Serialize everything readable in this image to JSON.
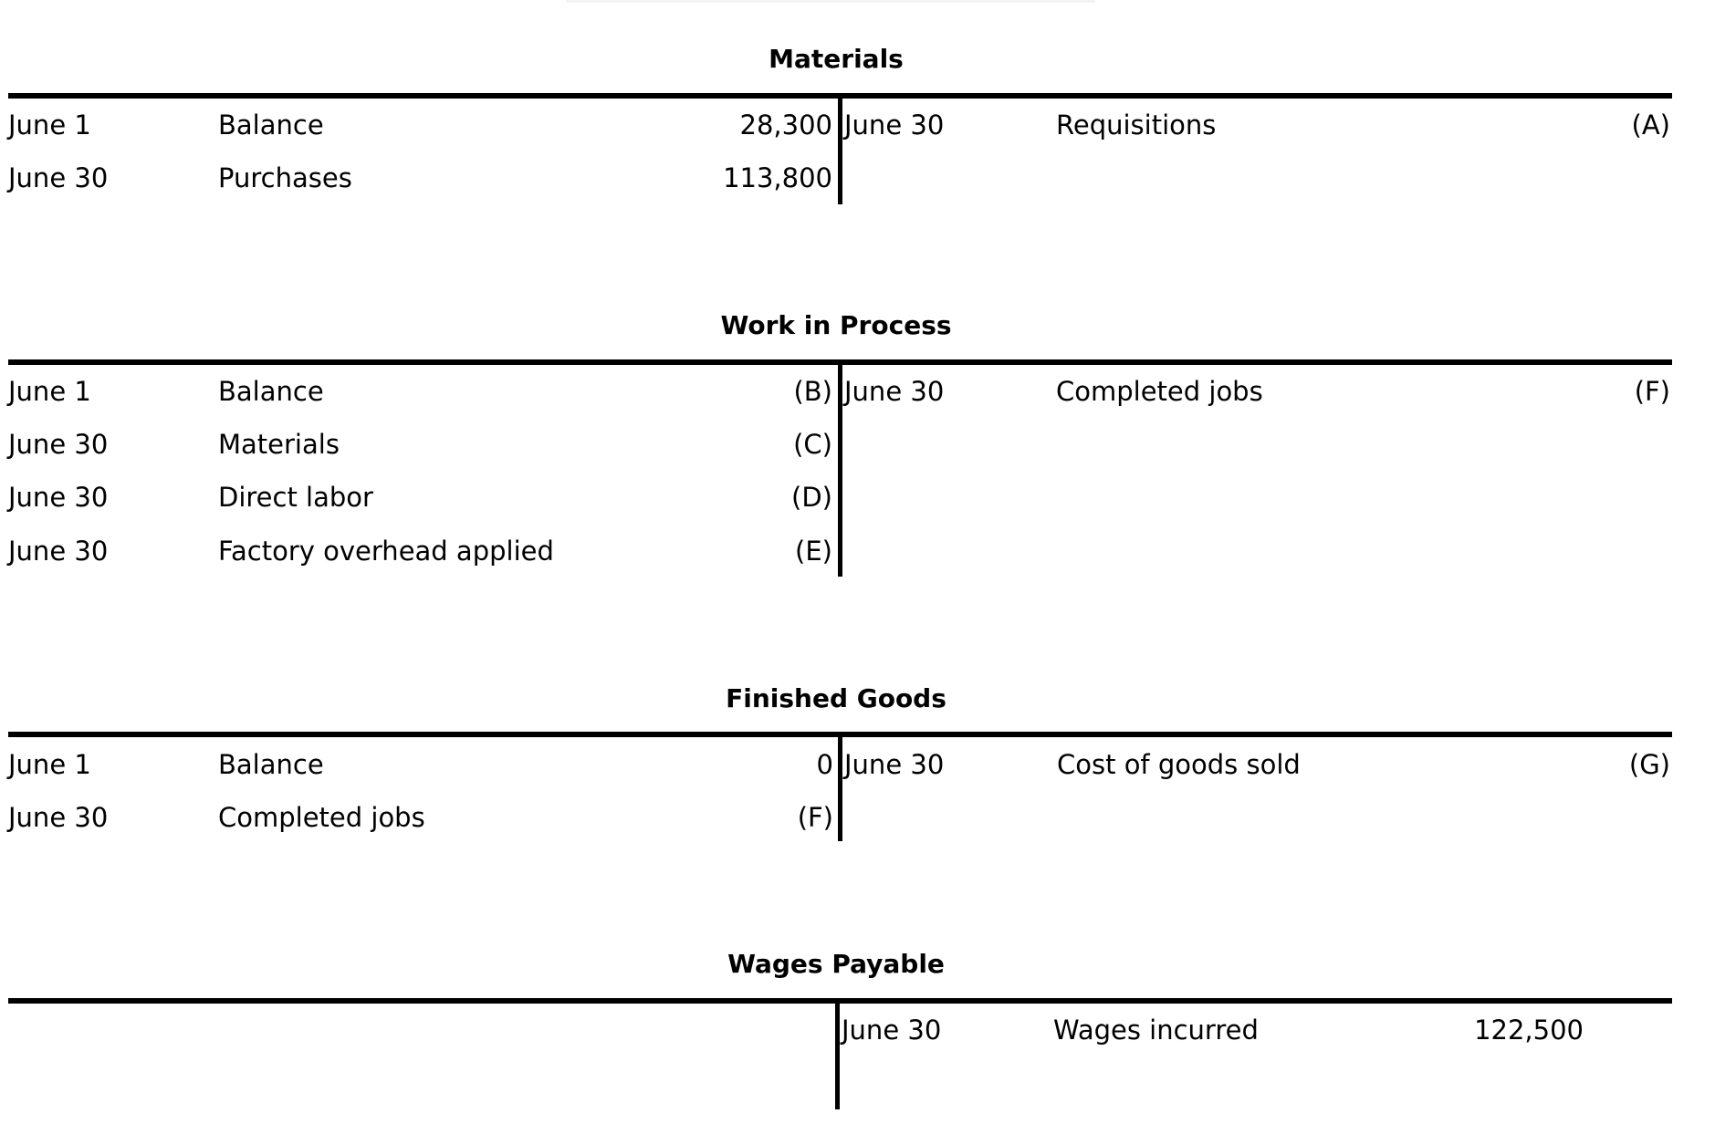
{
  "accounts": [
    {
      "title": "Materials",
      "debits": [
        {
          "date": "June 1",
          "desc": "Balance",
          "amount": "28,300"
        },
        {
          "date": "June 30",
          "desc": "Purchases",
          "amount": "113,800"
        }
      ],
      "credits": [
        {
          "date": "June 30",
          "desc": "Requisitions",
          "amount": "(A)"
        }
      ]
    },
    {
      "title": "Work in Process",
      "debits": [
        {
          "date": "June 1",
          "desc": "Balance",
          "amount": "(B)"
        },
        {
          "date": "June 30",
          "desc": "Materials",
          "amount": "(C)"
        },
        {
          "date": "June 30",
          "desc": "Direct labor",
          "amount": "(D)"
        },
        {
          "date": "June 30",
          "desc": "Factory overhead applied",
          "amount": "(E)"
        }
      ],
      "credits": [
        {
          "date": "June 30",
          "desc": "Completed jobs",
          "amount": "(F)"
        }
      ]
    },
    {
      "title": "Finished Goods",
      "debits": [
        {
          "date": "June 1",
          "desc": "Balance",
          "amount": "0"
        },
        {
          "date": "June 30",
          "desc": "Completed jobs",
          "amount": "(F)"
        }
      ],
      "credits": [
        {
          "date": "June 30",
          "desc": "Cost of goods sold",
          "amount": "(G)"
        }
      ]
    },
    {
      "title": "Wages Payable",
      "debits": [],
      "credits": [
        {
          "date": "June 30",
          "desc": "Wages incurred",
          "amount": "122,500"
        }
      ]
    }
  ]
}
